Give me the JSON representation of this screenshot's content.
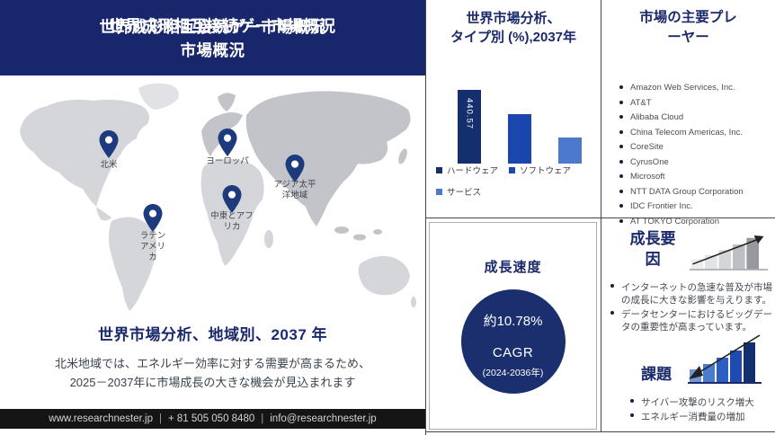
{
  "header": {
    "title_line1": "世界成形相互接続ゲー市場概況",
    "title_line2": "市場概況"
  },
  "map_section": {
    "heading": "世界市場分析、地域別、2037 年",
    "description": "北米地域では、エネルギー効率に対する需要が高まるため、2025－2037年に市場成長の大きな機会が見込まれます",
    "regions": [
      {
        "label": "北米",
        "pin_style": "left:110px;top:61px",
        "label_style": "left:81px;top:94px"
      },
      {
        "label": "ヨーロッパ",
        "pin_style": "left:242px;top:59px",
        "label_style": "left:213px;top:90px"
      },
      {
        "label": "アジア太平\n洋地域",
        "pin_style": "left:317px;top:88px",
        "label_style": "left:288px;top:116px"
      },
      {
        "label": "中東とアフ\nリカ",
        "pin_style": "left:247px;top:122px",
        "label_style": "left:218px;top:151px"
      },
      {
        "label": "ラテン\nアメリ\nカ",
        "pin_style": "left:159px;top:143px",
        "label_style": "left:130px;top:173px"
      }
    ]
  },
  "footer": {
    "website": "www.researchnester.jp",
    "phone": "+ 81 505 050 8480",
    "email": "info@researchnester.jp",
    "separator": "|"
  },
  "type_chart": {
    "title_line1": "世界市場分析、",
    "title_line2": "タイプ別 (%),2037年"
  },
  "chart_data": {
    "type": "bar",
    "title": "世界市場分析、タイプ別 (%),2037年",
    "categories": [
      "ハードウェア",
      "ソフトウェア",
      "サービス"
    ],
    "values": [
      440.57,
      296,
      158
    ],
    "value_labels": [
      "440.57",
      "",
      ""
    ],
    "colors": [
      "#132f6d",
      "#1a47ae",
      "#4d79cc"
    ],
    "ylim": [
      0,
      450
    ],
    "grid": false,
    "legend_position": "bottom"
  },
  "growth_speed": {
    "title": "成長速度",
    "cagr_value": "約10.78%",
    "cagr_label": "CAGR",
    "cagr_period": "(2024-2036年)"
  },
  "players": {
    "title": "市場の主要プレーヤー",
    "items": [
      "Amazon Web Services, Inc.",
      "AT&T",
      "Alibaba Cloud",
      "China Telecom Americas, Inc.",
      "CoreSite",
      "CyrusOne",
      "Microsoft",
      "NTT DATA Group Corporation",
      "IDC Frontier Inc.",
      "AT TOKYO Corporation"
    ]
  },
  "growth_factors": {
    "title": "成長要因",
    "items": [
      "インターネットの急速な普及が市場の成長に大きな影響を与えります。",
      "データセンターにおけるビッグデータの重要性が高まっています。"
    ]
  },
  "challenges": {
    "title": "課題",
    "items": [
      "サイバー攻撃のリスク増大",
      "エネルギー消費量の増加"
    ]
  },
  "colors": {
    "navy": "#18266b",
    "bar_dark": "#132f6d",
    "bar_mid": "#1a47ae",
    "bar_light": "#4d79cc",
    "footer_bg": "#151515",
    "pin": "#1d3a7c"
  }
}
